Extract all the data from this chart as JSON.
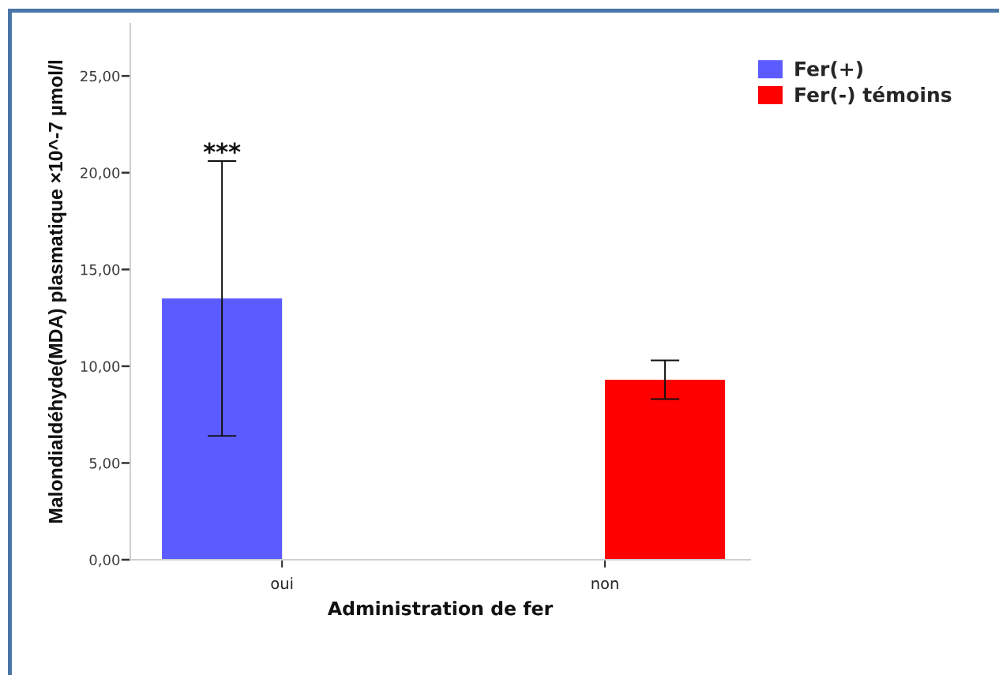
{
  "chart_data": {
    "type": "bar",
    "xlabel": "Administration de fer",
    "ylabel": "Malondialdéhyde(MDA) plasmatique ×10^-7 µmol/l",
    "categories": [
      "oui",
      "non"
    ],
    "series": [
      {
        "name": "Fer(+)",
        "color": "#5b5bff",
        "values": [
          13.5,
          null
        ],
        "errors": [
          [
            6.4,
            20.6
          ],
          null
        ]
      },
      {
        "name": "Fer(-) témoins",
        "color": "#ff0000",
        "values": [
          null,
          9.3
        ],
        "errors": [
          null,
          [
            8.3,
            10.3
          ]
        ]
      }
    ],
    "ylim": [
      0,
      27.7
    ],
    "yticks": [
      {
        "value": 0,
        "label": "0,00"
      },
      {
        "value": 5,
        "label": "5,00"
      },
      {
        "value": 10,
        "label": "10,00"
      },
      {
        "value": 15,
        "label": "15,00"
      },
      {
        "value": 20,
        "label": "20,00"
      },
      {
        "value": 25,
        "label": "25,00"
      }
    ],
    "legend": "top right",
    "grid": false,
    "annotations": [
      "***"
    ]
  }
}
